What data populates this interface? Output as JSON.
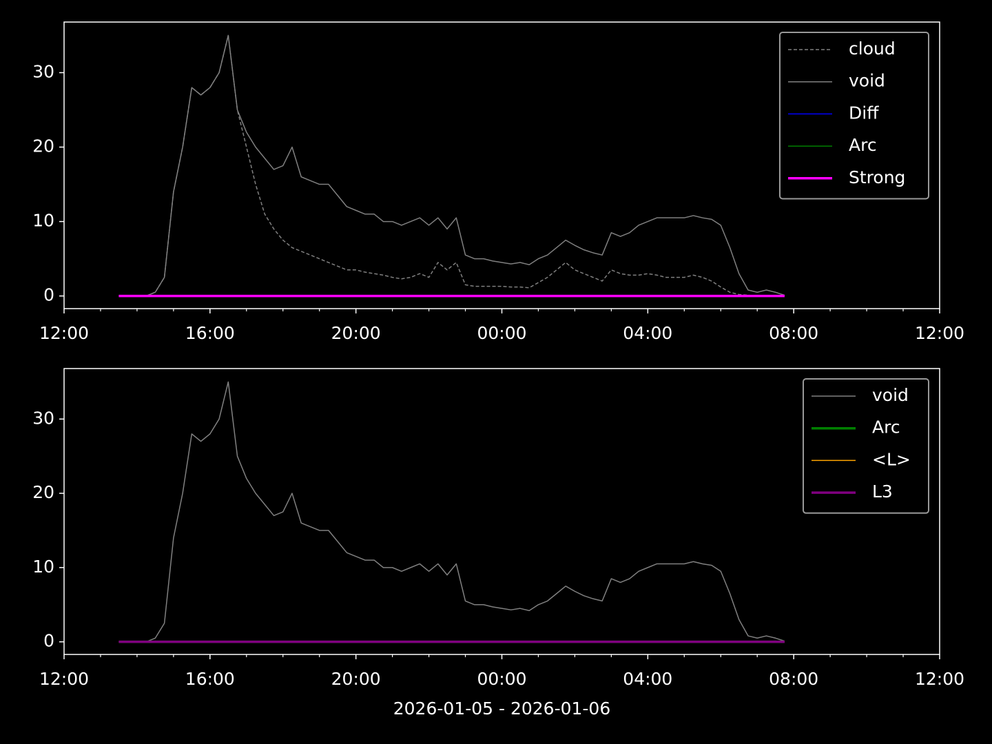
{
  "chart_data": [
    {
      "type": "line",
      "legend": "upper right",
      "ylim": [
        -1.7,
        36.8
      ],
      "yticks": [
        0,
        10,
        20,
        30
      ],
      "xlim": [
        "2026-01-05 12:00",
        "2026-01-06 12:00"
      ],
      "xticks": [
        {
          "value": "2026-01-05 12:00",
          "label": "12:00"
        },
        {
          "value": "2026-01-05 16:00",
          "label": "16:00"
        },
        {
          "value": "2026-01-05 20:00",
          "label": "20:00"
        },
        {
          "value": "2026-01-06 00:00",
          "label": "00:00"
        },
        {
          "value": "2026-01-06 04:00",
          "label": "04:00"
        },
        {
          "value": "2026-01-06 08:00",
          "label": "08:00"
        },
        {
          "value": "2026-01-06 12:00",
          "label": "12:00"
        }
      ],
      "x": [
        "2026-01-05 13:30",
        "2026-01-05 13:45",
        "2026-01-05 14:00",
        "2026-01-05 14:15",
        "2026-01-05 14:30",
        "2026-01-05 14:45",
        "2026-01-05 15:00",
        "2026-01-05 15:15",
        "2026-01-05 15:30",
        "2026-01-05 15:45",
        "2026-01-05 16:00",
        "2026-01-05 16:15",
        "2026-01-05 16:30",
        "2026-01-05 16:45",
        "2026-01-05 17:00",
        "2026-01-05 17:15",
        "2026-01-05 17:30",
        "2026-01-05 17:45",
        "2026-01-05 18:00",
        "2026-01-05 18:15",
        "2026-01-05 18:30",
        "2026-01-05 18:45",
        "2026-01-05 19:00",
        "2026-01-05 19:15",
        "2026-01-05 19:30",
        "2026-01-05 19:45",
        "2026-01-05 20:00",
        "2026-01-05 20:15",
        "2026-01-05 20:30",
        "2026-01-05 20:45",
        "2026-01-05 21:00",
        "2026-01-05 21:15",
        "2026-01-05 21:30",
        "2026-01-05 21:45",
        "2026-01-05 22:00",
        "2026-01-05 22:15",
        "2026-01-05 22:30",
        "2026-01-05 22:45",
        "2026-01-05 23:00",
        "2026-01-05 23:15",
        "2026-01-05 23:30",
        "2026-01-05 23:45",
        "2026-01-06 00:00",
        "2026-01-06 00:15",
        "2026-01-06 00:30",
        "2026-01-06 00:45",
        "2026-01-06 01:00",
        "2026-01-06 01:15",
        "2026-01-06 01:30",
        "2026-01-06 01:45",
        "2026-01-06 02:00",
        "2026-01-06 02:15",
        "2026-01-06 02:30",
        "2026-01-06 02:45",
        "2026-01-06 03:00",
        "2026-01-06 03:15",
        "2026-01-06 03:30",
        "2026-01-06 03:45",
        "2026-01-06 04:00",
        "2026-01-06 04:15",
        "2026-01-06 04:30",
        "2026-01-06 04:45",
        "2026-01-06 05:00",
        "2026-01-06 05:15",
        "2026-01-06 05:30",
        "2026-01-06 05:45",
        "2026-01-06 06:00",
        "2026-01-06 06:15",
        "2026-01-06 06:30",
        "2026-01-06 06:45",
        "2026-01-06 07:00",
        "2026-01-06 07:15",
        "2026-01-06 07:30",
        "2026-01-06 07:45"
      ],
      "series": [
        {
          "name": "cloud",
          "color": "#808080",
          "linewidth": 1.5,
          "linestyle": "dashed",
          "values": [
            0,
            0,
            0,
            0,
            0.5,
            2.5,
            14,
            20,
            28,
            27,
            28,
            30,
            35,
            25,
            20,
            15,
            11,
            9,
            7.5,
            6.5,
            6,
            5.5,
            5,
            4.5,
            4,
            3.5,
            3.5,
            3.2,
            3,
            2.8,
            2.5,
            2.3,
            2.5,
            3,
            2.5,
            4.5,
            3.5,
            4.5,
            1.5,
            1.3,
            1.3,
            1.3,
            1.3,
            1.2,
            1.2,
            1.1,
            1.8,
            2.5,
            3.5,
            4.5,
            3.5,
            3,
            2.5,
            2,
            3.5,
            3,
            2.8,
            2.8,
            3,
            2.8,
            2.5,
            2.5,
            2.5,
            2.8,
            2.5,
            2,
            1.2,
            0.5,
            0.2,
            0.1,
            0,
            0,
            0,
            0
          ]
        },
        {
          "name": "void",
          "color": "#808080",
          "linewidth": 1.5,
          "values": [
            0,
            0,
            0,
            0,
            0.5,
            2.5,
            14,
            20,
            28,
            27,
            28,
            30,
            35,
            25,
            22,
            20,
            18.5,
            17,
            17.5,
            20,
            16,
            15.5,
            15,
            15,
            13.5,
            12,
            11.5,
            11,
            11,
            10,
            10,
            9.5,
            10,
            10.5,
            9.5,
            10.5,
            9,
            10.5,
            5.5,
            5,
            5,
            4.7,
            4.5,
            4.3,
            4.5,
            4.2,
            5,
            5.5,
            6.5,
            7.5,
            6.8,
            6.2,
            5.8,
            5.5,
            8.5,
            8,
            8.5,
            9.5,
            10,
            10.5,
            10.5,
            10.5,
            10.5,
            10.8,
            10.5,
            10.3,
            9.5,
            6.5,
            3,
            0.8,
            0.5,
            0.8,
            0.5,
            0.1
          ]
        },
        {
          "name": "Diff",
          "color": "#0000ff",
          "linewidth": 1.5,
          "x": [
            "2026-01-05 13:30",
            "2026-01-06 07:45"
          ],
          "values": [
            0,
            0
          ]
        },
        {
          "name": "Arc",
          "color": "#008000",
          "linewidth": 1.5,
          "x": [
            "2026-01-05 13:30",
            "2026-01-06 07:45"
          ],
          "values": [
            0,
            0
          ]
        },
        {
          "name": "Strong",
          "color": "#ff00ff",
          "linewidth": 3.5,
          "x": [
            "2026-01-05 13:30",
            "2026-01-06 07:45"
          ],
          "values": [
            0,
            0
          ]
        }
      ]
    },
    {
      "type": "line",
      "legend": "upper right",
      "ylim": [
        -1.7,
        36.8
      ],
      "yticks": [
        0,
        10,
        20,
        30
      ],
      "xlim": [
        "2026-01-05 12:00",
        "2026-01-06 12:00"
      ],
      "xticks": [
        {
          "value": "2026-01-05 12:00",
          "label": "12:00"
        },
        {
          "value": "2026-01-05 16:00",
          "label": "16:00"
        },
        {
          "value": "2026-01-05 20:00",
          "label": "20:00"
        },
        {
          "value": "2026-01-06 00:00",
          "label": "00:00"
        },
        {
          "value": "2026-01-06 04:00",
          "label": "04:00"
        },
        {
          "value": "2026-01-06 08:00",
          "label": "08:00"
        },
        {
          "value": "2026-01-06 12:00",
          "label": "12:00"
        }
      ],
      "x_label": "2026-01-05 - 2026-01-06",
      "x": [
        "2026-01-05 13:30",
        "2026-01-05 13:45",
        "2026-01-05 14:00",
        "2026-01-05 14:15",
        "2026-01-05 14:30",
        "2026-01-05 14:45",
        "2026-01-05 15:00",
        "2026-01-05 15:15",
        "2026-01-05 15:30",
        "2026-01-05 15:45",
        "2026-01-05 16:00",
        "2026-01-05 16:15",
        "2026-01-05 16:30",
        "2026-01-05 16:45",
        "2026-01-05 17:00",
        "2026-01-05 17:15",
        "2026-01-05 17:30",
        "2026-01-05 17:45",
        "2026-01-05 18:00",
        "2026-01-05 18:15",
        "2026-01-05 18:30",
        "2026-01-05 18:45",
        "2026-01-05 19:00",
        "2026-01-05 19:15",
        "2026-01-05 19:30",
        "2026-01-05 19:45",
        "2026-01-05 20:00",
        "2026-01-05 20:15",
        "2026-01-05 20:30",
        "2026-01-05 20:45",
        "2026-01-05 21:00",
        "2026-01-05 21:15",
        "2026-01-05 21:30",
        "2026-01-05 21:45",
        "2026-01-05 22:00",
        "2026-01-05 22:15",
        "2026-01-05 22:30",
        "2026-01-05 22:45",
        "2026-01-05 23:00",
        "2026-01-05 23:15",
        "2026-01-05 23:30",
        "2026-01-05 23:45",
        "2026-01-06 00:00",
        "2026-01-06 00:15",
        "2026-01-06 00:30",
        "2026-01-06 00:45",
        "2026-01-06 01:00",
        "2026-01-06 01:15",
        "2026-01-06 01:30",
        "2026-01-06 01:45",
        "2026-01-06 02:00",
        "2026-01-06 02:15",
        "2026-01-06 02:30",
        "2026-01-06 02:45",
        "2026-01-06 03:00",
        "2026-01-06 03:15",
        "2026-01-06 03:30",
        "2026-01-06 03:45",
        "2026-01-06 04:00",
        "2026-01-06 04:15",
        "2026-01-06 04:30",
        "2026-01-06 04:45",
        "2026-01-06 05:00",
        "2026-01-06 05:15",
        "2026-01-06 05:30",
        "2026-01-06 05:45",
        "2026-01-06 06:00",
        "2026-01-06 06:15",
        "2026-01-06 06:30",
        "2026-01-06 06:45",
        "2026-01-06 07:00",
        "2026-01-06 07:15",
        "2026-01-06 07:30",
        "2026-01-06 07:45"
      ],
      "series": [
        {
          "name": "void",
          "color": "#808080",
          "linewidth": 1.5,
          "values": [
            0,
            0,
            0,
            0,
            0.5,
            2.5,
            14,
            20,
            28,
            27,
            28,
            30,
            35,
            25,
            22,
            20,
            18.5,
            17,
            17.5,
            20,
            16,
            15.5,
            15,
            15,
            13.5,
            12,
            11.5,
            11,
            11,
            10,
            10,
            9.5,
            10,
            10.5,
            9.5,
            10.5,
            9,
            10.5,
            5.5,
            5,
            5,
            4.7,
            4.5,
            4.3,
            4.5,
            4.2,
            5,
            5.5,
            6.5,
            7.5,
            6.8,
            6.2,
            5.8,
            5.5,
            8.5,
            8,
            8.5,
            9.5,
            10,
            10.5,
            10.5,
            10.5,
            10.5,
            10.8,
            10.5,
            10.3,
            9.5,
            6.5,
            3,
            0.8,
            0.5,
            0.8,
            0.5,
            0.1
          ]
        },
        {
          "name": "Arc",
          "color": "#008000",
          "linewidth": 3.5,
          "x": [
            "2026-01-05 13:30",
            "2026-01-06 07:45"
          ],
          "values": [
            0,
            0
          ]
        },
        {
          "name": "<L>",
          "color": "#ffa500",
          "linewidth": 1.5,
          "x": [
            "2026-01-05 13:30",
            "2026-01-06 07:45"
          ],
          "values": [
            0,
            0
          ]
        },
        {
          "name": "L3",
          "color": "#800080",
          "linewidth": 3.5,
          "x": [
            "2026-01-05 13:30",
            "2026-01-06 07:45"
          ],
          "values": [
            0,
            0
          ]
        }
      ]
    }
  ]
}
